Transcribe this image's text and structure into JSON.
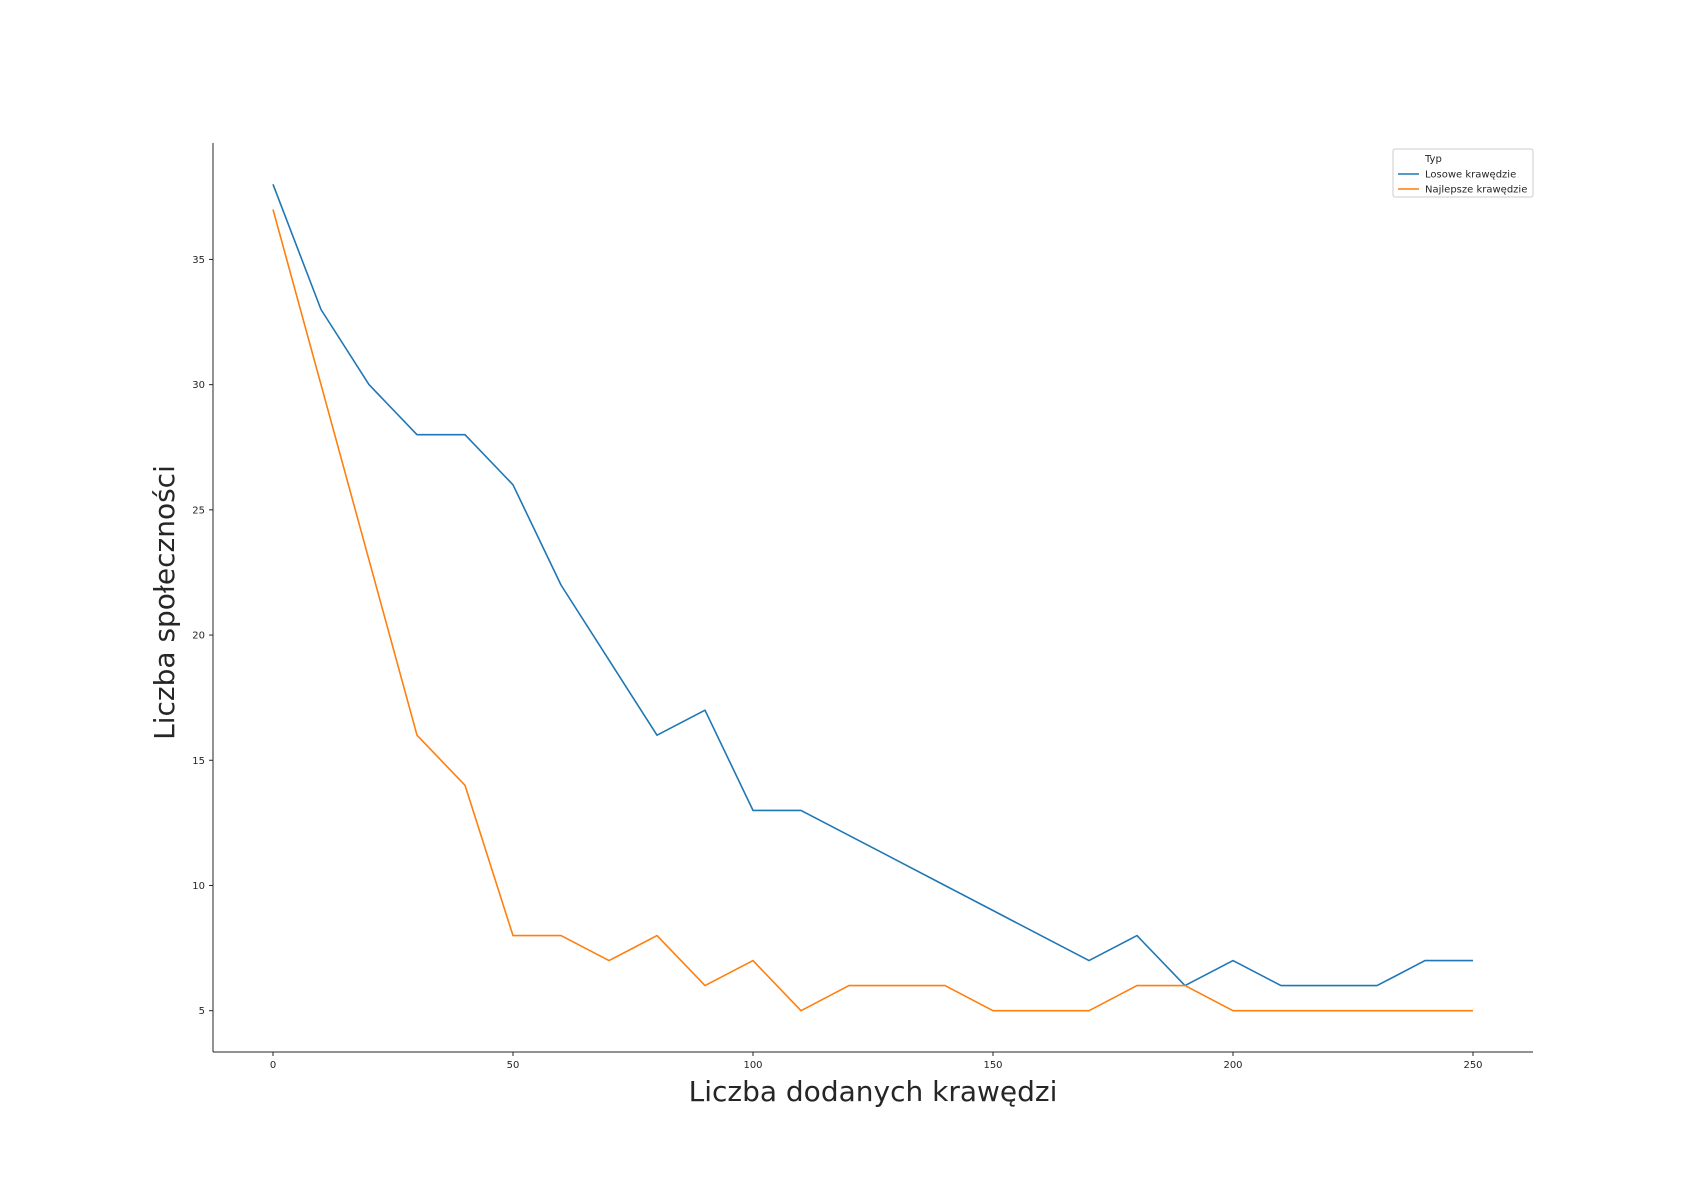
{
  "chart_data": {
    "type": "line",
    "title": "",
    "xlabel": "Liczba dodanych krawędzi",
    "ylabel": "Liczba społeczności",
    "xlim": [
      -12.5,
      262.5
    ],
    "ylim": [
      3.35,
      39.65
    ],
    "xticks": [
      "0",
      "50",
      "100",
      "150",
      "200",
      "250"
    ],
    "yticks": [
      "5",
      "10",
      "15",
      "20",
      "25",
      "30",
      "35"
    ],
    "x": [
      0,
      10,
      20,
      30,
      40,
      50,
      60,
      70,
      80,
      90,
      100,
      110,
      120,
      130,
      140,
      150,
      160,
      170,
      180,
      190,
      200,
      210,
      220,
      230,
      240,
      250
    ],
    "series": [
      {
        "name": "Losowe krawędzie",
        "color": "#1f77b4",
        "values": [
          38,
          33,
          30,
          28,
          28,
          26,
          22,
          19,
          16,
          17,
          13,
          13,
          12,
          11,
          10,
          9,
          8,
          7,
          8,
          6,
          7,
          6,
          6,
          6,
          7,
          7
        ]
      },
      {
        "name": "Najlepsze krawędzie",
        "color": "#ff7f0e",
        "values": [
          37,
          30,
          23,
          16,
          14,
          8,
          8,
          7,
          8,
          6,
          7,
          5,
          6,
          6,
          6,
          5,
          5,
          5,
          6,
          6,
          5,
          5,
          5,
          5,
          5,
          5
        ]
      }
    ],
    "legend": {
      "title": "Typ",
      "placement": "top-right"
    },
    "grid": false
  }
}
